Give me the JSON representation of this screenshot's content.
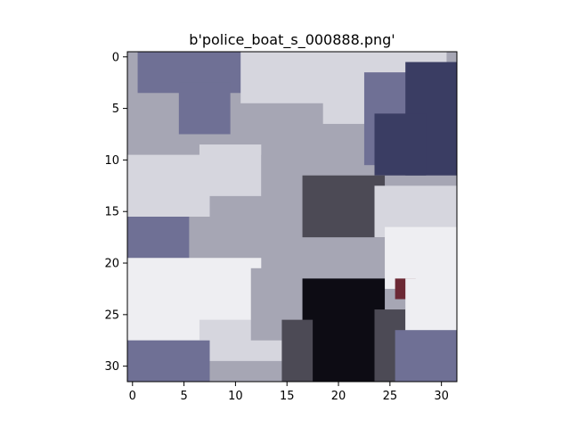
{
  "chart_data": {
    "type": "heatmap",
    "title": "b'police_boat_s_000888.png'",
    "x_ticks": [
      0,
      5,
      10,
      15,
      20,
      25,
      30
    ],
    "y_ticks": [
      0,
      5,
      10,
      15,
      20,
      25,
      30
    ],
    "xlim": [
      -0.5,
      31.5
    ],
    "ylim": [
      31.5,
      -0.5
    ],
    "image_size": [
      32,
      32
    ],
    "colors": {
      "light": "#d6d6de",
      "grey": "#a6a6b4",
      "blue": "#6f7095",
      "dark_blue": "#3a3d63",
      "white": "#eeeef2",
      "black": "#0d0c14",
      "dark_grey": "#4c4a55",
      "red": "#6b2834"
    },
    "image_regions": [
      {
        "color": "grey",
        "x": [
          0,
          31
        ],
        "y": [
          0,
          31
        ]
      },
      {
        "color": "blue",
        "x": [
          1,
          11
        ],
        "y": [
          0,
          3
        ]
      },
      {
        "color": "light",
        "x": [
          11,
          23
        ],
        "y": [
          0,
          4
        ]
      },
      {
        "color": "light",
        "x": [
          19,
          30
        ],
        "y": [
          0,
          6
        ]
      },
      {
        "color": "blue",
        "x": [
          5,
          9
        ],
        "y": [
          3,
          7
        ]
      },
      {
        "color": "blue",
        "x": [
          23,
          31
        ],
        "y": [
          2,
          10
        ]
      },
      {
        "color": "dark_blue",
        "x": [
          27,
          31
        ],
        "y": [
          1,
          11
        ]
      },
      {
        "color": "dark_blue",
        "x": [
          24,
          28
        ],
        "y": [
          6,
          11
        ]
      },
      {
        "color": "light",
        "x": [
          0,
          7
        ],
        "y": [
          10,
          15
        ]
      },
      {
        "color": "light",
        "x": [
          7,
          12
        ],
        "y": [
          9,
          13
        ]
      },
      {
        "color": "grey",
        "x": [
          13,
          18
        ],
        "y": [
          10,
          16
        ]
      },
      {
        "color": "dark_grey",
        "x": [
          17,
          24
        ],
        "y": [
          12,
          17
        ]
      },
      {
        "color": "light",
        "x": [
          24,
          31
        ],
        "y": [
          13,
          17
        ]
      },
      {
        "color": "white",
        "x": [
          25,
          31
        ],
        "y": [
          17,
          22
        ]
      },
      {
        "color": "blue",
        "x": [
          0,
          5
        ],
        "y": [
          16,
          20
        ]
      },
      {
        "color": "white",
        "x": [
          0,
          12
        ],
        "y": [
          20,
          27
        ]
      },
      {
        "color": "light",
        "x": [
          7,
          14
        ],
        "y": [
          26,
          29
        ]
      },
      {
        "color": "grey",
        "x": [
          12,
          16
        ],
        "y": [
          21,
          27
        ]
      },
      {
        "color": "black",
        "x": [
          17,
          24
        ],
        "y": [
          22,
          31
        ]
      },
      {
        "color": "dark_grey",
        "x": [
          15,
          17
        ],
        "y": [
          26,
          31
        ]
      },
      {
        "color": "dark_grey",
        "x": [
          24,
          26
        ],
        "y": [
          25,
          31
        ]
      },
      {
        "color": "red",
        "x": [
          26,
          27
        ],
        "y": [
          22,
          23
        ]
      },
      {
        "color": "white",
        "x": [
          27,
          31
        ],
        "y": [
          22,
          27
        ]
      },
      {
        "color": "blue",
        "x": [
          0,
          7
        ],
        "y": [
          28,
          31
        ]
      },
      {
        "color": "blue",
        "x": [
          26,
          31
        ],
        "y": [
          27,
          31
        ]
      }
    ]
  }
}
